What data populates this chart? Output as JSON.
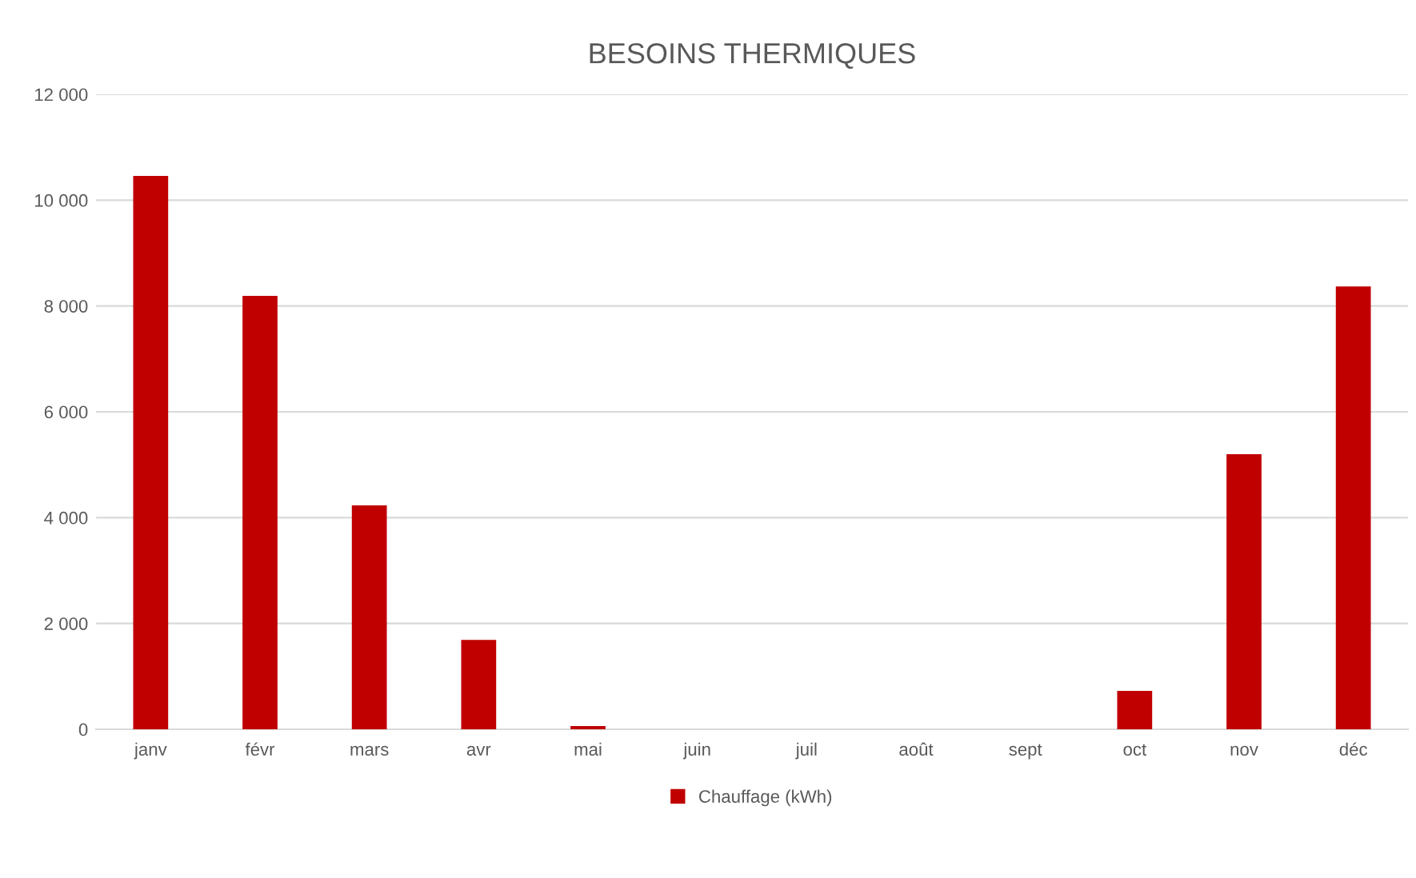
{
  "chart_data": {
    "type": "bar",
    "title": "BESOINS THERMIQUES",
    "categories": [
      "janv",
      "févr",
      "mars",
      "avr",
      "mai",
      "juin",
      "juil",
      "août",
      "sept",
      "oct",
      "nov",
      "déc"
    ],
    "series": [
      {
        "name": "Chauffage (kWh)",
        "color": "#c00000",
        "values": [
          10460,
          8190,
          4230,
          1690,
          60,
          0,
          0,
          0,
          0,
          725,
          5200,
          8370
        ]
      }
    ],
    "ylim": [
      0,
      12000
    ],
    "yticks": [
      0,
      {
        "value": 2000,
        "label": "2 000"
      },
      {
        "value": 4000,
        "label": "4 000"
      },
      {
        "value": 6000,
        "label": "6 000"
      },
      {
        "value": 8000,
        "label": "8 000"
      },
      {
        "value": 10000,
        "label": "10 000"
      },
      {
        "value": 12000,
        "label": "12 000"
      }
    ],
    "grid": "y",
    "legend": "bottom"
  }
}
